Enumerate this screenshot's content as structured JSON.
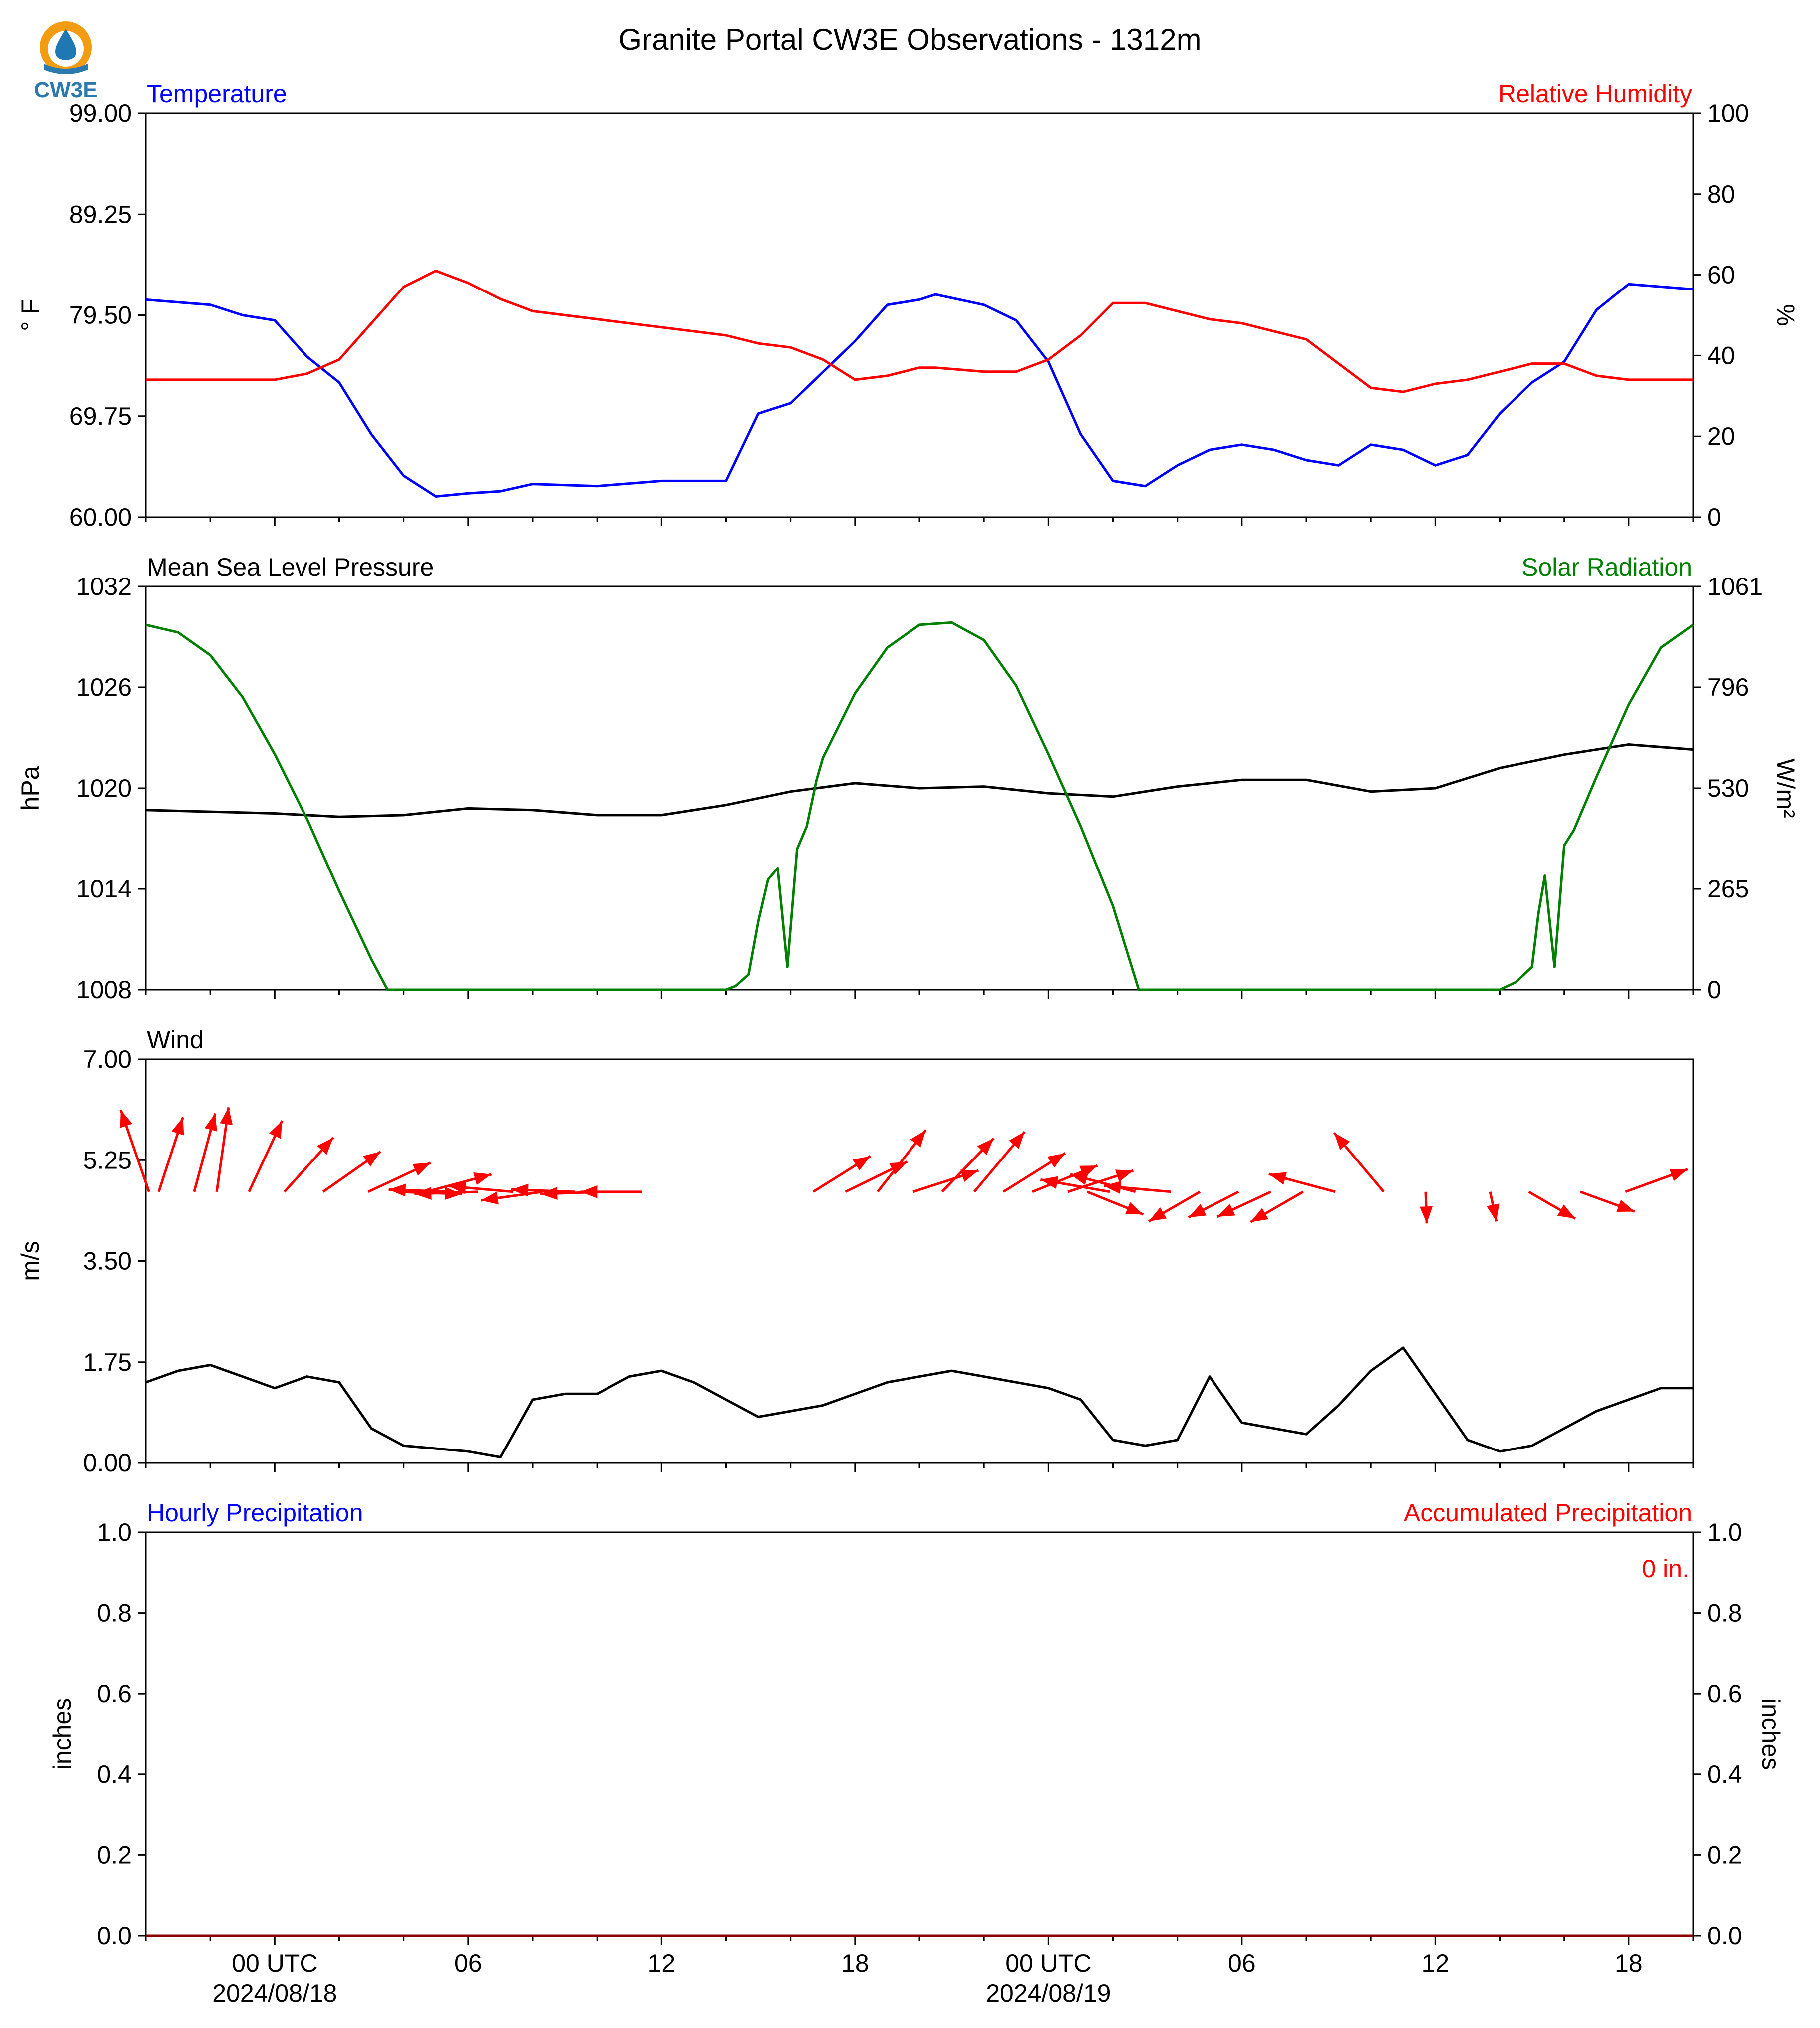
{
  "title": "Granite Portal CW3E Observations - 1312m",
  "logo": {
    "text": "CW3E",
    "colors": {
      "ring": "#f39c12",
      "drop": "#1f77b4",
      "text": "#2a7ab0"
    }
  },
  "time_axis": {
    "tick_labels": [
      {
        "hour": 48,
        "label": "00 UTC",
        "date": "2024/08/18"
      },
      {
        "hour": 54,
        "label": "06",
        "date": ""
      },
      {
        "hour": 60,
        "label": "12",
        "date": ""
      },
      {
        "hour": 66,
        "label": "18",
        "date": ""
      },
      {
        "hour": 72,
        "label": "00 UTC",
        "date": "2024/08/19"
      },
      {
        "hour": 78,
        "label": "06",
        "date": ""
      },
      {
        "hour": 84,
        "label": "12",
        "date": ""
      },
      {
        "hour": 90,
        "label": "18",
        "date": ""
      }
    ]
  },
  "colors": {
    "blue": "#0000ff",
    "red": "#ff0000",
    "green": "#008000",
    "black": "#000000",
    "darkred": "#8b0000"
  },
  "chart_data": [
    {
      "type": "line",
      "panel_id": "temperature-humidity",
      "left_title": "Temperature",
      "right_title": "Relative Humidity",
      "ylabel_left": "° F",
      "ylabel_right": "%",
      "ylim_left": [
        60.0,
        99.0
      ],
      "ylim_right": [
        0,
        100
      ],
      "yticks_left": [
        "99.00",
        "89.25",
        "79.50",
        "69.75",
        "60.00"
      ],
      "yticks_right": [
        "100",
        "80",
        "60",
        "40",
        "20",
        "0"
      ],
      "x_hours": [
        44,
        46,
        47,
        48,
        49,
        50,
        51,
        52,
        53,
        54,
        55,
        56,
        58,
        60,
        62,
        63,
        64,
        65,
        66,
        67,
        68,
        68.5,
        70,
        71,
        72,
        73,
        74,
        75,
        76,
        77,
        78,
        79,
        80,
        81,
        82,
        83,
        84,
        85,
        86,
        87,
        88,
        89,
        90,
        92
      ],
      "series": [
        {
          "name": "Temperature",
          "axis": "left",
          "color": "#0000ff",
          "values": [
            81,
            80.5,
            79.5,
            79,
            75.5,
            73,
            68,
            64,
            62,
            62.3,
            62.5,
            63.2,
            63,
            63.5,
            63.5,
            70,
            71,
            74,
            77,
            80.5,
            81,
            81.5,
            80.5,
            79,
            75,
            68,
            63.5,
            63,
            65,
            66.5,
            67,
            66.5,
            65.5,
            65,
            67,
            66.5,
            65,
            66,
            70,
            73,
            75,
            80,
            82.5,
            82
          ]
        },
        {
          "name": "Relative Humidity",
          "axis": "right",
          "color": "#ff0000",
          "values": [
            34,
            34,
            34,
            34,
            35.5,
            39,
            48,
            57,
            61,
            58,
            54,
            51,
            49,
            47,
            45,
            43,
            42,
            39,
            34,
            35,
            37,
            37,
            36,
            36,
            39,
            45,
            53,
            53,
            51,
            49,
            48,
            46,
            44,
            38,
            32,
            31,
            33,
            34,
            36,
            38,
            38,
            35,
            34,
            34
          ]
        }
      ]
    },
    {
      "type": "line",
      "panel_id": "pressure-solar",
      "left_title": "Mean Sea Level Pressure",
      "right_title": "Solar Radiation",
      "ylabel_left": "hPa",
      "ylabel_right": "W/m²",
      "ylim_left": [
        1008,
        1032
      ],
      "ylim_right": [
        0,
        1061
      ],
      "yticks_left": [
        "1032",
        "1026",
        "1020",
        "1014",
        "1008"
      ],
      "yticks_right": [
        "1061",
        "796",
        "530",
        "265",
        "0"
      ],
      "x_hours": [
        44,
        46,
        48,
        50,
        52,
        54,
        56,
        58,
        60,
        62,
        64,
        66,
        68,
        70,
        72,
        74,
        76,
        78,
        80,
        82,
        84,
        86,
        88,
        90,
        92
      ],
      "series": [
        {
          "name": "Mean Sea Level Pressure",
          "axis": "left",
          "color": "#000000",
          "values": [
            1018.7,
            1018.6,
            1018.5,
            1018.3,
            1018.4,
            1018.8,
            1018.7,
            1018.4,
            1018.4,
            1019,
            1019.8,
            1020.3,
            1020.0,
            1020.1,
            1019.7,
            1019.5,
            1020.1,
            1020.5,
            1020.5,
            1019.8,
            1020,
            1021.2,
            1022,
            1022.6,
            1022.3
          ]
        }
      ],
      "solar": {
        "name": "Solar Radiation",
        "axis": "right",
        "color": "#008000",
        "x_hours": [
          44,
          45,
          46,
          47,
          48,
          49,
          50,
          51,
          51.5,
          52,
          53,
          54,
          55,
          56,
          57,
          58,
          59,
          60,
          61,
          62,
          62.3,
          62.7,
          63,
          63.3,
          63.6,
          63.9,
          64.2,
          64.5,
          64.8,
          65,
          66,
          67,
          68,
          69,
          70,
          71,
          72,
          73,
          74,
          74.8,
          75,
          76,
          78,
          80,
          82,
          84,
          85,
          86,
          86.5,
          87,
          87.2,
          87.4,
          87.7,
          88,
          88.3,
          89,
          90,
          91,
          92
        ],
        "values": [
          960,
          940,
          880,
          770,
          620,
          450,
          260,
          80,
          0,
          0,
          0,
          0,
          0,
          0,
          0,
          0,
          0,
          0,
          0,
          0,
          10,
          40,
          180,
          290,
          320,
          60,
          370,
          430,
          550,
          610,
          780,
          900,
          960,
          966,
          920,
          800,
          620,
          430,
          220,
          0,
          0,
          0,
          0,
          0,
          0,
          0,
          0,
          0,
          20,
          60,
          200,
          300,
          60,
          380,
          420,
          560,
          750,
          900,
          960
        ]
      }
    },
    {
      "type": "line",
      "panel_id": "wind",
      "left_title": "Wind",
      "ylabel_left": "m/s",
      "ylim_left": [
        0,
        7.0
      ],
      "yticks_left": [
        "7.00",
        "5.25",
        "3.50",
        "1.75",
        "0.00"
      ],
      "x_hours": [
        44,
        45,
        46,
        47,
        48,
        49,
        50,
        51,
        52,
        53,
        54,
        55,
        56,
        57,
        58,
        59,
        60,
        61,
        62,
        63,
        64,
        65,
        66,
        67,
        68,
        69,
        70,
        71,
        72,
        73,
        74,
        75,
        76,
        77,
        78,
        79,
        80,
        81,
        82,
        83,
        84,
        85,
        86,
        87,
        88,
        89,
        90,
        91,
        92
      ],
      "series": [
        {
          "name": "Wind Speed",
          "color": "#000000",
          "values": [
            1.4,
            1.6,
            1.7,
            1.5,
            1.3,
            1.5,
            1.4,
            0.6,
            0.3,
            0.25,
            0.2,
            0.1,
            1.1,
            1.2,
            1.2,
            1.5,
            1.6,
            1.4,
            1.1,
            0.8,
            0.9,
            1.0,
            1.2,
            1.4,
            1.5,
            1.6,
            1.5,
            1.4,
            1.3,
            1.1,
            0.4,
            0.3,
            0.4,
            1.5,
            0.7,
            0.6,
            0.5,
            1.0,
            1.6,
            2.0,
            1.2,
            0.4,
            0.2,
            0.3,
            0.6,
            0.9,
            1.1,
            1.3,
            1.3
          ]
        }
      ],
      "wind_vectors": [
        {
          "hour": 44.1,
          "speed": 6.3,
          "dir_deg": 341
        },
        {
          "hour": 44.4,
          "speed": 5.7,
          "dir_deg": 18
        },
        {
          "hour": 45.5,
          "speed": 5.9,
          "dir_deg": 15
        },
        {
          "hour": 46.2,
          "speed": 6.2,
          "dir_deg": 8
        },
        {
          "hour": 47.2,
          "speed": 5.7,
          "dir_deg": 25
        },
        {
          "hour": 48.3,
          "speed": 5.3,
          "dir_deg": 42
        },
        {
          "hour": 49.5,
          "speed": 5.1,
          "dir_deg": 55
        },
        {
          "hour": 50.9,
          "speed": 5.0,
          "dir_deg": 65
        },
        {
          "hour": 51.8,
          "speed": 4.7,
          "dir_deg": 92
        },
        {
          "hour": 52.7,
          "speed": 4.9,
          "dir_deg": 75
        },
        {
          "hour": 53.5,
          "speed": 4.6,
          "dir_deg": 272
        },
        {
          "hour": 54.3,
          "speed": 4.6,
          "dir_deg": 268
        },
        {
          "hour": 55.4,
          "speed": 4.7,
          "dir_deg": 275
        },
        {
          "hour": 56.3,
          "speed": 4.5,
          "dir_deg": 262
        },
        {
          "hour": 57.3,
          "speed": 4.6,
          "dir_deg": 272
        },
        {
          "hour": 58.2,
          "speed": 4.6,
          "dir_deg": 268
        },
        {
          "hour": 59.4,
          "speed": 4.5,
          "dir_deg": 270
        },
        {
          "hour": 64.7,
          "speed": 4.9,
          "dir_deg": 58
        },
        {
          "hour": 65.7,
          "speed": 5.0,
          "dir_deg": 64
        },
        {
          "hour": 66.7,
          "speed": 5.7,
          "dir_deg": 38
        },
        {
          "hour": 67.8,
          "speed": 5.0,
          "dir_deg": 72
        },
        {
          "hour": 68.7,
          "speed": 5.4,
          "dir_deg": 44
        },
        {
          "hour": 69.7,
          "speed": 5.7,
          "dir_deg": 40
        },
        {
          "hour": 70.6,
          "speed": 5.3,
          "dir_deg": 58
        },
        {
          "hour": 71.5,
          "speed": 5.1,
          "dir_deg": 68
        },
        {
          "hour": 72.6,
          "speed": 5.0,
          "dir_deg": 72
        },
        {
          "hour": 73.2,
          "speed": 4.4,
          "dir_deg": 112
        },
        {
          "hour": 73.9,
          "speed": 5.1,
          "dir_deg": 280
        },
        {
          "hour": 74.7,
          "speed": 4.9,
          "dir_deg": 285
        },
        {
          "hour": 75.8,
          "speed": 4.9,
          "dir_deg": 275
        },
        {
          "hour": 76.7,
          "speed": 4.3,
          "dir_deg": 240
        },
        {
          "hour": 77.9,
          "speed": 4.1,
          "dir_deg": 243
        },
        {
          "hour": 78.9,
          "speed": 4.3,
          "dir_deg": 245
        },
        {
          "hour": 79.9,
          "speed": 4.4,
          "dir_deg": 240
        },
        {
          "hour": 80.9,
          "speed": 5.0,
          "dir_deg": 285
        },
        {
          "hour": 82.4,
          "speed": 5.6,
          "dir_deg": 320
        },
        {
          "hour": 83.7,
          "speed": 2.3,
          "dir_deg": 178
        },
        {
          "hour": 85.7,
          "speed": 2.2,
          "dir_deg": 168
        },
        {
          "hour": 86.9,
          "speed": 3.9,
          "dir_deg": 120
        },
        {
          "hour": 88.5,
          "speed": 4.2,
          "dir_deg": 110
        },
        {
          "hour": 89.9,
          "speed": 4.8,
          "dir_deg": 70
        }
      ]
    },
    {
      "type": "line",
      "panel_id": "precipitation",
      "left_title": "Hourly Precipitation",
      "right_title": "Accumulated Precipitation",
      "ylabel_left": "inches",
      "ylabel_right": "inches",
      "ylim_left": [
        0,
        1.0
      ],
      "ylim_right": [
        0,
        1.0
      ],
      "yticks_left": [
        "1.0",
        "0.8",
        "0.6",
        "0.4",
        "0.2",
        "0.0"
      ],
      "yticks_right": [
        "1.0",
        "0.8",
        "0.6",
        "0.4",
        "0.2",
        "0.0"
      ],
      "accumulated_label": "0 in.",
      "x_hours": [
        44,
        92
      ],
      "series": [
        {
          "name": "Hourly Precipitation",
          "color": "#0000ff",
          "values": [
            0,
            0
          ]
        },
        {
          "name": "Accumulated Precipitation",
          "color": "#8b0000",
          "values": [
            0,
            0
          ]
        }
      ]
    }
  ]
}
